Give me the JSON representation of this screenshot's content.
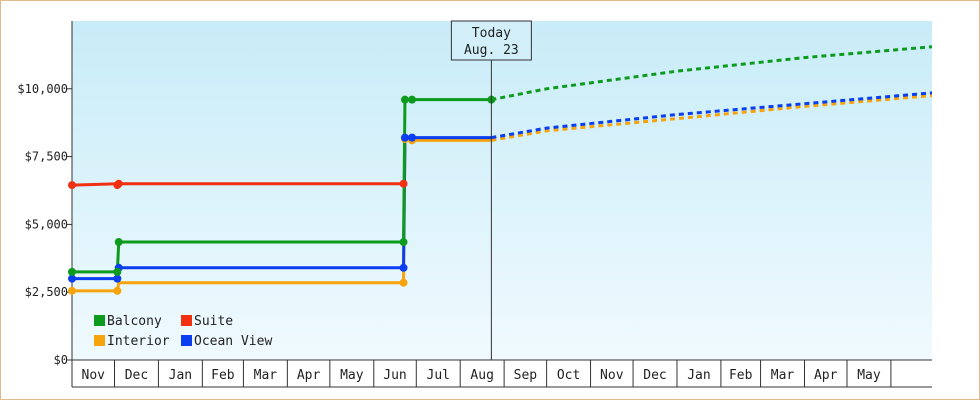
{
  "chart_data": {
    "type": "line",
    "title": "",
    "xlabel": "",
    "ylabel": "",
    "ylim": [
      0,
      12500
    ],
    "xlim": [
      "2023-11-01",
      "2025-06-30"
    ],
    "y_ticks": [
      {
        "value": 0,
        "label": "$0"
      },
      {
        "value": 2500,
        "label": "$2,500"
      },
      {
        "value": 5000,
        "label": "$5,000"
      },
      {
        "value": 7500,
        "label": "$7,500"
      },
      {
        "value": 10000,
        "label": "$10,000"
      }
    ],
    "months": [
      {
        "start": "2023-11-01",
        "label": "Nov"
      },
      {
        "start": "2023-12-01",
        "label": "Dec"
      },
      {
        "start": "2024-01-01",
        "label": "Jan"
      },
      {
        "start": "2024-02-01",
        "label": "Feb"
      },
      {
        "start": "2024-03-01",
        "label": "Mar"
      },
      {
        "start": "2024-04-01",
        "label": "Apr"
      },
      {
        "start": "2024-05-01",
        "label": "May"
      },
      {
        "start": "2024-06-01",
        "label": "Jun"
      },
      {
        "start": "2024-07-01",
        "label": "Jul"
      },
      {
        "start": "2024-08-01",
        "label": "Aug"
      },
      {
        "start": "2024-09-01",
        "label": "Sep"
      },
      {
        "start": "2024-10-01",
        "label": "Oct"
      },
      {
        "start": "2024-11-01",
        "label": "Nov"
      },
      {
        "start": "2024-12-01",
        "label": "Dec"
      },
      {
        "start": "2025-01-01",
        "label": "Jan"
      },
      {
        "start": "2025-02-01",
        "label": "Feb"
      },
      {
        "start": "2025-03-01",
        "label": "Mar"
      },
      {
        "start": "2025-04-01",
        "label": "Apr"
      },
      {
        "start": "2025-05-01",
        "label": "May"
      },
      {
        "start": "2025-06-01",
        "label": ""
      }
    ],
    "today": {
      "date": "2024-08-23",
      "line1": "Today",
      "line2": "Aug. 23"
    },
    "background": {
      "top": "#c8ecf8",
      "bottom": "#f0fafe"
    },
    "legend": {
      "placement": "bottom-left"
    },
    "series": [
      {
        "name": "Balcony",
        "color": "#0d9b1e",
        "history": [
          {
            "date": "2023-11-01",
            "value": 3250
          },
          {
            "date": "2023-12-03",
            "value": 3250
          },
          {
            "date": "2023-12-04",
            "value": 4350
          },
          {
            "date": "2024-06-22",
            "value": 4350
          },
          {
            "date": "2024-06-23",
            "value": 9600
          },
          {
            "date": "2024-06-28",
            "value": 9600
          },
          {
            "date": "2024-08-23",
            "value": 9600
          }
        ],
        "markers": [
          "2023-11-01",
          "2023-12-03",
          "2023-12-04",
          "2024-06-22",
          "2024-06-23",
          "2024-06-28",
          "2024-08-23"
        ],
        "forecast": [
          {
            "date": "2024-08-23",
            "value": 9600
          },
          {
            "date": "2024-10-01",
            "value": 10000
          },
          {
            "date": "2025-01-01",
            "value": 10650
          },
          {
            "date": "2025-04-01",
            "value": 11150
          },
          {
            "date": "2025-06-30",
            "value": 11550
          }
        ]
      },
      {
        "name": "Suite",
        "color": "#f03010",
        "history": [
          {
            "date": "2023-11-01",
            "value": 6450
          },
          {
            "date": "2023-12-04",
            "value": 6500
          },
          {
            "date": "2024-06-22",
            "value": 6500
          }
        ],
        "markers": [
          "2023-11-01",
          "2023-12-03",
          "2023-12-04",
          "2024-06-22"
        ],
        "forecast": []
      },
      {
        "name": "Interior",
        "color": "#f7a40c",
        "history": [
          {
            "date": "2023-11-01",
            "value": 2550
          },
          {
            "date": "2023-12-03",
            "value": 2550
          },
          {
            "date": "2023-12-04",
            "value": 2850
          },
          {
            "date": "2024-06-22",
            "value": 2850
          },
          {
            "date": "2024-06-23",
            "value": 8150
          },
          {
            "date": "2024-06-28",
            "value": 8100
          },
          {
            "date": "2024-08-23",
            "value": 8100
          }
        ],
        "markers": [
          "2023-11-01",
          "2023-12-03",
          "2024-06-22",
          "2024-06-23",
          "2024-06-28"
        ],
        "forecast": [
          {
            "date": "2024-08-23",
            "value": 8100
          },
          {
            "date": "2024-10-01",
            "value": 8450
          },
          {
            "date": "2025-01-01",
            "value": 8900
          },
          {
            "date": "2025-04-01",
            "value": 9350
          },
          {
            "date": "2025-06-30",
            "value": 9750
          }
        ]
      },
      {
        "name": "Ocean View",
        "color": "#0a3ef0",
        "history": [
          {
            "date": "2023-11-01",
            "value": 3000
          },
          {
            "date": "2023-12-03",
            "value": 3000
          },
          {
            "date": "2023-12-04",
            "value": 3400
          },
          {
            "date": "2024-06-22",
            "value": 3400
          },
          {
            "date": "2024-06-23",
            "value": 8200
          },
          {
            "date": "2024-06-28",
            "value": 8200
          },
          {
            "date": "2024-08-23",
            "value": 8200
          }
        ],
        "markers": [
          "2023-11-01",
          "2023-12-03",
          "2023-12-04",
          "2024-06-22",
          "2024-06-23",
          "2024-06-28"
        ],
        "forecast": [
          {
            "date": "2024-08-23",
            "value": 8200
          },
          {
            "date": "2024-10-01",
            "value": 8550
          },
          {
            "date": "2025-01-01",
            "value": 9050
          },
          {
            "date": "2025-04-01",
            "value": 9450
          },
          {
            "date": "2025-06-30",
            "value": 9850
          }
        ]
      }
    ]
  }
}
